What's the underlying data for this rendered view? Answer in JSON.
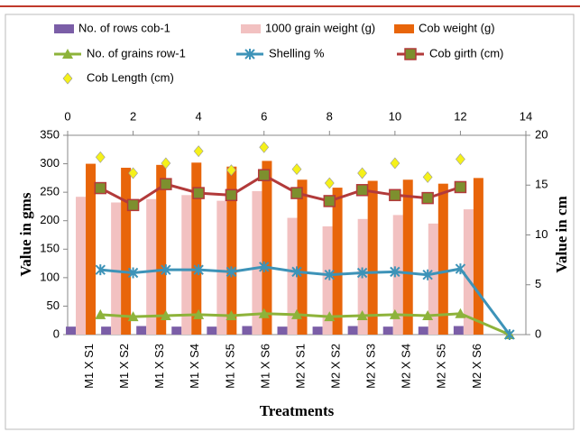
{
  "chart_data": {
    "type": "combo",
    "ylabel": "Value in gms",
    "y2label": "Value in cm",
    "xlabel": "Treatments",
    "categories": [
      "M1 X S1",
      "M1 X S2",
      "M1 X S3",
      "M1 X S4",
      "M1 X S5",
      "M1 X S6",
      "M2 X S1",
      "M2 X S2",
      "M2 X S3",
      "M2 X S4",
      "M2 X S5",
      "M2 X S6",
      null
    ],
    "x": [
      1,
      2,
      3,
      4,
      5,
      6,
      7,
      8,
      9,
      10,
      11,
      12,
      13.5
    ],
    "xlim": [
      0,
      14
    ],
    "xticks": [
      0,
      2,
      4,
      6,
      8,
      10,
      12,
      14
    ],
    "ylim": [
      0,
      350
    ],
    "yticks": [
      0,
      50,
      100,
      150,
      200,
      250,
      300,
      350
    ],
    "y2lim": [
      0,
      20
    ],
    "y2ticks": [
      0,
      5,
      10,
      15,
      20
    ],
    "series": [
      {
        "name": "No. of rows cob-1",
        "type": "bar",
        "color": "#7b5ea7",
        "values": [
          14,
          14,
          15,
          14,
          14,
          15,
          14,
          14,
          15,
          14,
          14,
          15,
          null
        ]
      },
      {
        "name": "1000 grain weight (g)",
        "type": "bar",
        "color": "#f2c1c1",
        "values": [
          242,
          232,
          238,
          245,
          235,
          252,
          205,
          190,
          203,
          210,
          195,
          220,
          null
        ]
      },
      {
        "name": "Cob weight (g)",
        "type": "bar",
        "color": "#e8650a",
        "values": [
          300,
          293,
          298,
          302,
          295,
          305,
          272,
          258,
          270,
          272,
          265,
          275,
          null
        ]
      },
      {
        "name": "No. of grains row-1",
        "type": "line",
        "axis": "y2",
        "marker": "triangle",
        "color": "#8db33a",
        "values": [
          2.0,
          1.8,
          1.9,
          2.0,
          1.9,
          2.1,
          2.0,
          1.8,
          1.9,
          2.0,
          1.9,
          2.1,
          0
        ]
      },
      {
        "name": "Shelling %",
        "type": "line",
        "axis": "y2",
        "marker": "star",
        "color": "#3d93b8",
        "values": [
          6.5,
          6.2,
          6.5,
          6.5,
          6.3,
          6.8,
          6.3,
          6.0,
          6.2,
          6.3,
          6.0,
          6.6,
          0
        ]
      },
      {
        "name": "Cob girth (cm)",
        "type": "line",
        "axis": "y2",
        "marker": "square",
        "color": "#b23a3a",
        "values": [
          14.7,
          13.0,
          15.1,
          14.2,
          14.0,
          16.0,
          14.2,
          13.4,
          14.5,
          14.0,
          13.7,
          14.8,
          null
        ]
      },
      {
        "name": "Cob Length (cm)",
        "type": "scatter",
        "axis": "y2",
        "marker": "diamond",
        "color": "#f5f11a",
        "values": [
          17.8,
          16.2,
          17.2,
          18.4,
          16.5,
          18.8,
          16.6,
          15.2,
          16.2,
          17.2,
          15.8,
          17.6,
          null
        ]
      }
    ]
  }
}
